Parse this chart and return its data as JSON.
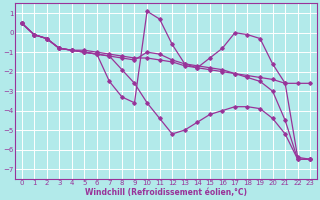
{
  "xlabel": "Windchill (Refroidissement éolien,°C)",
  "bg_color": "#b2eaea",
  "grid_color": "#ffffff",
  "line_color": "#993399",
  "xlim": [
    -0.5,
    23.5
  ],
  "ylim": [
    -7.5,
    1.5
  ],
  "xticks": [
    0,
    1,
    2,
    3,
    4,
    5,
    6,
    7,
    8,
    9,
    10,
    11,
    12,
    13,
    14,
    15,
    16,
    17,
    18,
    19,
    20,
    21,
    22,
    23
  ],
  "yticks": [
    1,
    0,
    -1,
    -2,
    -3,
    -4,
    -5,
    -6,
    -7
  ],
  "series": [
    [
      0.5,
      -0.1,
      -0.3,
      -0.8,
      -0.9,
      -0.9,
      -1.0,
      -1.1,
      -1.2,
      -1.3,
      -1.3,
      -1.4,
      -1.5,
      -1.7,
      -1.8,
      -1.9,
      -2.0,
      -2.1,
      -2.2,
      -2.3,
      -2.4,
      -2.6,
      -2.6,
      -2.6
    ],
    [
      0.5,
      -0.1,
      -0.3,
      -0.8,
      -0.9,
      -1.0,
      -1.1,
      -2.5,
      -3.3,
      -3.6,
      1.1,
      0.7,
      -0.6,
      -1.6,
      -1.8,
      -1.3,
      -0.8,
      0.0,
      -0.1,
      -0.3,
      -1.6,
      -2.6,
      -6.4,
      -6.5
    ],
    [
      0.5,
      -0.1,
      -0.3,
      -0.8,
      -0.9,
      -1.0,
      -1.1,
      -1.2,
      -1.3,
      -1.4,
      -1.0,
      -1.1,
      -1.4,
      -1.6,
      -1.7,
      -1.8,
      -1.9,
      -2.1,
      -2.3,
      -2.5,
      -3.0,
      -4.5,
      -6.5,
      -6.5
    ],
    [
      0.5,
      -0.1,
      -0.3,
      -0.8,
      -0.9,
      -1.0,
      -1.1,
      -1.2,
      -1.9,
      -2.6,
      -3.6,
      -4.4,
      -5.2,
      -5.0,
      -4.6,
      -4.2,
      -4.0,
      -3.8,
      -3.8,
      -3.9,
      -4.4,
      -5.2,
      -6.5,
      -6.5
    ]
  ]
}
